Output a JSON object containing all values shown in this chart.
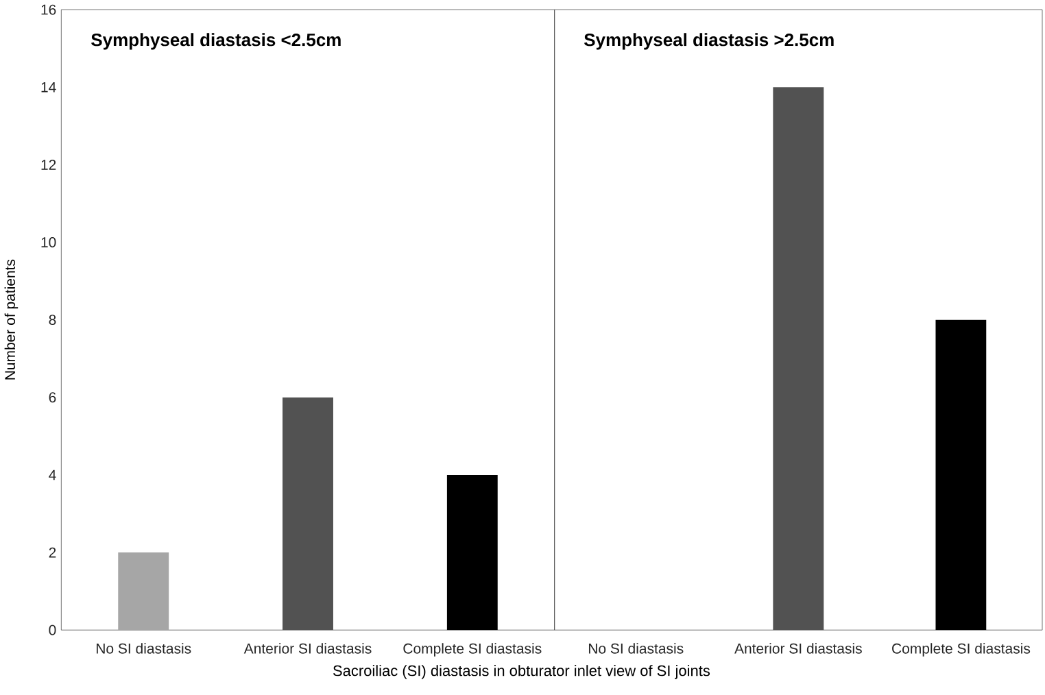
{
  "chart_data": [
    {
      "type": "bar",
      "title": "Symphyseal diastasis <2.5cm",
      "xlabel": "Sacroiliac (SI) diastasis in obturator inlet view of SI joints",
      "ylabel": "Number of patients",
      "categories": [
        "No SI diastasis",
        "Anterior SI  diastasis",
        "Complete SI diastasis"
      ],
      "values": [
        2,
        6,
        4
      ],
      "colors": [
        "#a6a6a6",
        "#525252",
        "#000000"
      ],
      "ylim": [
        0,
        16
      ],
      "yticks": [
        0,
        2,
        4,
        6,
        8,
        10,
        12,
        14,
        16
      ]
    },
    {
      "type": "bar",
      "title": "Symphyseal diastasis >2.5cm",
      "categories": [
        "No SI diastasis",
        "Anterior SI  diastasis",
        "Complete SI diastasis"
      ],
      "values": [
        0,
        14,
        8
      ],
      "colors": [
        "#a6a6a6",
        "#525252",
        "#000000"
      ],
      "ylim": [
        0,
        16
      ],
      "yticks": [
        0,
        2,
        4,
        6,
        8,
        10,
        12,
        14,
        16
      ],
      "tick_labels": "x"
    }
  ]
}
